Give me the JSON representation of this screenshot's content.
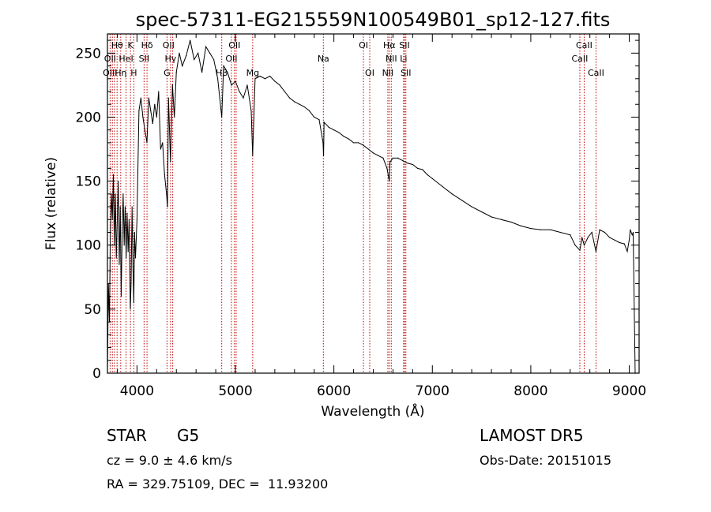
{
  "chart_data": {
    "type": "line",
    "title": "spec-57311-EG215559N100549B01_sp12-127.fits",
    "xlabel": "Wavelength (Å)",
    "ylabel": "Flux (relative)",
    "xlim": [
      3700,
      9100
    ],
    "ylim": [
      0,
      265
    ],
    "x_ticks": [
      4000,
      5000,
      6000,
      7000,
      8000,
      9000
    ],
    "y_ticks": [
      0,
      50,
      100,
      150,
      200,
      250
    ],
    "grid": false,
    "series": [
      {
        "x": [
          3700,
          3710,
          3720,
          3730,
          3740,
          3750,
          3760,
          3770,
          3780,
          3790,
          3800,
          3810,
          3820,
          3830,
          3840,
          3850,
          3860,
          3870,
          3880,
          3890,
          3900,
          3910,
          3920,
          3930,
          3933,
          3940,
          3950,
          3960,
          3968,
          3975,
          3985,
          4000,
          4020,
          4040,
          4060,
          4080,
          4101,
          4120,
          4140,
          4160,
          4180,
          4200,
          4220,
          4240,
          4260,
          4280,
          4300,
          4310,
          4320,
          4340,
          4360,
          4380,
          4400,
          4430,
          4460,
          4500,
          4540,
          4580,
          4620,
          4660,
          4700,
          4740,
          4780,
          4820,
          4861,
          4880,
          4920,
          4960,
          5000,
          5040,
          5080,
          5120,
          5160,
          5175,
          5200,
          5250,
          5300,
          5350,
          5400,
          5450,
          5500,
          5550,
          5600,
          5650,
          5700,
          5750,
          5800,
          5850,
          5890,
          5895,
          5900,
          5950,
          6000,
          6050,
          6100,
          6150,
          6200,
          6250,
          6300,
          6350,
          6400,
          6450,
          6500,
          6540,
          6563,
          6570,
          6600,
          6650,
          6700,
          6750,
          6800,
          6850,
          6900,
          6950,
          7000,
          7100,
          7200,
          7300,
          7400,
          7500,
          7600,
          7700,
          7800,
          7900,
          8000,
          8100,
          8200,
          8300,
          8400,
          8450,
          8498,
          8520,
          8542,
          8580,
          8620,
          8662,
          8700,
          8750,
          8800,
          8850,
          8900,
          8950,
          8980,
          9000,
          9010,
          9030,
          9040,
          9060
        ],
        "y": [
          0,
          70,
          40,
          110,
          140,
          120,
          155,
          100,
          140,
          90,
          120,
          150,
          85,
          130,
          60,
          110,
          140,
          100,
          130,
          90,
          125,
          95,
          120,
          60,
          50,
          70,
          130,
          80,
          55,
          110,
          90,
          120,
          205,
          215,
          200,
          190,
          180,
          215,
          205,
          195,
          210,
          200,
          220,
          175,
          180,
          155,
          140,
          130,
          215,
          165,
          225,
          200,
          235,
          250,
          240,
          248,
          260,
          245,
          250,
          235,
          255,
          250,
          245,
          230,
          200,
          240,
          235,
          225,
          228,
          220,
          215,
          225,
          205,
          170,
          230,
          232,
          230,
          232,
          228,
          225,
          220,
          215,
          212,
          210,
          208,
          205,
          200,
          198,
          180,
          170,
          196,
          192,
          190,
          188,
          185,
          183,
          180,
          180,
          178,
          175,
          172,
          170,
          168,
          160,
          150,
          165,
          168,
          168,
          166,
          164,
          163,
          160,
          159,
          155,
          152,
          146,
          140,
          135,
          130,
          126,
          122,
          120,
          118,
          115,
          113,
          112,
          112,
          110,
          108,
          100,
          96,
          106,
          100,
          106,
          110,
          95,
          112,
          110,
          106,
          104,
          102,
          101,
          95,
          104,
          112,
          108,
          110,
          0
        ]
      }
    ],
    "spectral_lines": [
      {
        "label": "Hθ",
        "x": 3798,
        "row": 0
      },
      {
        "label": "OII",
        "x": 3727,
        "row": 1
      },
      {
        "label": "OIII",
        "x": 3727,
        "row": 2
      },
      {
        "label": "K",
        "x": 3934,
        "row": 0
      },
      {
        "label": "HeI",
        "x": 3889,
        "row": 1
      },
      {
        "label": "Hη",
        "x": 3835,
        "row": 2
      },
      {
        "label": "SII",
        "x": 4072,
        "row": 1
      },
      {
        "label": "H",
        "x": 3968,
        "row": 2
      },
      {
        "label": "Hδ",
        "x": 4102,
        "row": 0
      },
      {
        "label": "OII",
        "x": 4320,
        "row": 0
      },
      {
        "label": "Hγ",
        "x": 4341,
        "row": 1
      },
      {
        "label": "G",
        "x": 4305,
        "row": 2
      },
      {
        "label": "OII",
        "x": 4990,
        "row": 0
      },
      {
        "label": "OII",
        "x": 4959,
        "row": 1
      },
      {
        "label": "Hβ",
        "x": 4861,
        "row": 2
      },
      {
        "label": "Mg",
        "x": 5175,
        "row": 2
      },
      {
        "label": "Na",
        "x": 5893,
        "row": 1
      },
      {
        "label": "OI",
        "x": 6300,
        "row": 0
      },
      {
        "label": "OI",
        "x": 6364,
        "row": 2
      },
      {
        "label": "Hα",
        "x": 6563,
        "row": 0
      },
      {
        "label": "SII",
        "x": 6717,
        "row": 0
      },
      {
        "label": "NII",
        "x": 6583,
        "row": 1
      },
      {
        "label": "Li",
        "x": 6708,
        "row": 1
      },
      {
        "label": "NII",
        "x": 6548,
        "row": 2
      },
      {
        "label": "SII",
        "x": 6731,
        "row": 2
      },
      {
        "label": "CaII",
        "x": 8542,
        "row": 0
      },
      {
        "label": "CaII",
        "x": 8498,
        "row": 1
      },
      {
        "label": "CaII",
        "x": 8662,
        "row": 2
      }
    ],
    "line_markers_x": [
      3727,
      3750,
      3771,
      3798,
      3835,
      3889,
      3934,
      3968,
      4072,
      4102,
      4305,
      4341,
      4363,
      4861,
      4959,
      4990,
      5007,
      5175,
      5893,
      6300,
      6364,
      6548,
      6563,
      6583,
      6708,
      6717,
      6731,
      8498,
      8542,
      8662
    ]
  },
  "info": {
    "class": "STAR",
    "subclass": "G5",
    "survey": "LAMOST DR5",
    "cz": "cz = 9.0 ± 4.6 km/s",
    "obs_date": "Obs-Date: 20151015",
    "coords": "RA = 329.75109, DEC =  11.93200"
  }
}
